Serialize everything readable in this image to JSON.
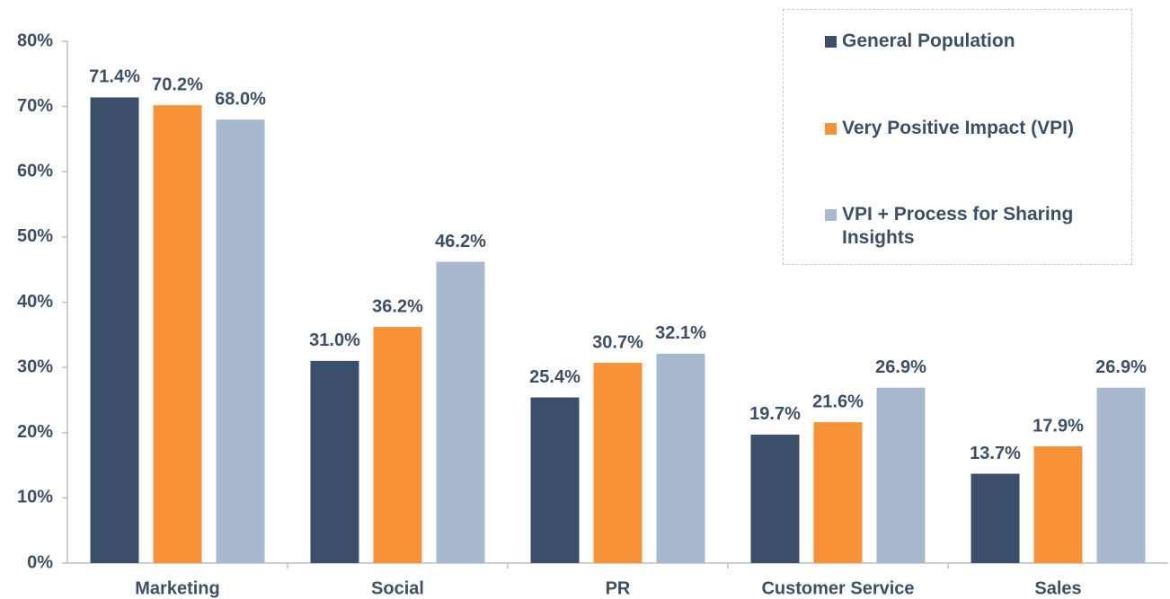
{
  "chart_data": {
    "type": "bar",
    "categories": [
      "Marketing",
      "Social",
      "PR",
      "Customer Service",
      "Sales"
    ],
    "series": [
      {
        "name": "General Population",
        "color": "#3b4f6b",
        "values": [
          71.4,
          31.0,
          25.4,
          19.7,
          13.7
        ],
        "value_labels": [
          "71.4%",
          "31.0%",
          "25.4%",
          "19.7%",
          "13.7%"
        ]
      },
      {
        "name": "Very Positive Impact (VPI)",
        "color": "#f79239",
        "values": [
          70.2,
          36.2,
          30.7,
          21.6,
          17.9
        ],
        "value_labels": [
          "70.2%",
          "36.2%",
          "30.7%",
          "21.6%",
          "17.9%"
        ]
      },
      {
        "name": "VPI + Process for Sharing Insights",
        "color": "#a8b8cf",
        "values": [
          68.0,
          46.2,
          32.1,
          26.9,
          26.9
        ],
        "value_labels": [
          "68.0%",
          "46.2%",
          "32.1%",
          "26.9%",
          "26.9%"
        ]
      }
    ],
    "ylim": [
      0,
      80
    ],
    "yticks": [
      {
        "value": 0,
        "label": "0%"
      },
      {
        "value": 10,
        "label": "10%"
      },
      {
        "value": 20,
        "label": "20%"
      },
      {
        "value": 30,
        "label": "30%"
      },
      {
        "value": 40,
        "label": "40%"
      },
      {
        "value": 50,
        "label": "50%"
      },
      {
        "value": 60,
        "label": "60%"
      },
      {
        "value": 70,
        "label": "70%"
      },
      {
        "value": 80,
        "label": "80%"
      }
    ],
    "grid": false,
    "legend": "top-right"
  }
}
